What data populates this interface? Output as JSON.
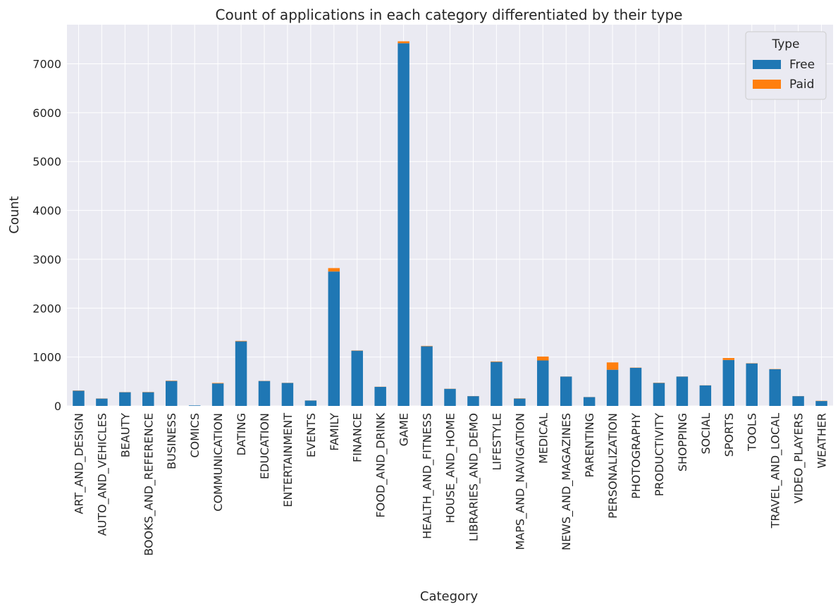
{
  "chart_data": {
    "type": "bar",
    "stacked": true,
    "title": "Count of applications in each category differentiated by their type",
    "xlabel": "Category",
    "ylabel": "Count",
    "ylim": [
      0,
      7800
    ],
    "yticks": [
      0,
      1000,
      2000,
      3000,
      4000,
      5000,
      6000,
      7000
    ],
    "grid": true,
    "legend": {
      "title": "Type",
      "placement": "top-right"
    },
    "categories": [
      "ART_AND_DESIGN",
      "AUTO_AND_VEHICLES",
      "BEAUTY",
      "BOOKS_AND_REFERENCE",
      "BUSINESS",
      "COMICS",
      "COMMUNICATION",
      "DATING",
      "EDUCATION",
      "ENTERTAINMENT",
      "EVENTS",
      "FAMILY",
      "FINANCE",
      "FOOD_AND_DRINK",
      "GAME",
      "HEALTH_AND_FITNESS",
      "HOUSE_AND_HOME",
      "LIBRARIES_AND_DEMO",
      "LIFESTYLE",
      "MAPS_AND_NAVIGATION",
      "MEDICAL",
      "NEWS_AND_MAGAZINES",
      "PARENTING",
      "PERSONALIZATION",
      "PHOTOGRAPHY",
      "PRODUCTIVITY",
      "SHOPPING",
      "SOCIAL",
      "SPORTS",
      "TOOLS",
      "TRAVEL_AND_LOCAL",
      "VIDEO_PLAYERS",
      "WEATHER"
    ],
    "series": [
      {
        "name": "Free",
        "color": "#1f77b4",
        "values": [
          310,
          150,
          280,
          280,
          510,
          10,
          460,
          1320,
          510,
          470,
          110,
          2750,
          1130,
          390,
          7420,
          1220,
          350,
          200,
          900,
          150,
          930,
          600,
          180,
          740,
          780,
          470,
          600,
          420,
          940,
          870,
          750,
          200,
          100
        ]
      },
      {
        "name": "Paid",
        "color": "#ff7f0e",
        "values": [
          5,
          3,
          3,
          5,
          7,
          0,
          10,
          10,
          3,
          3,
          2,
          70,
          5,
          3,
          40,
          8,
          3,
          2,
          10,
          5,
          80,
          2,
          2,
          150,
          5,
          5,
          2,
          2,
          40,
          5,
          5,
          2,
          5
        ]
      }
    ]
  }
}
